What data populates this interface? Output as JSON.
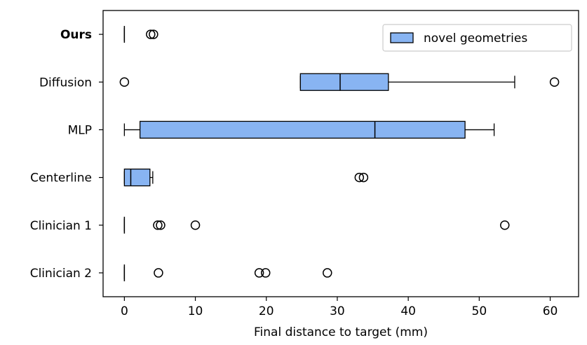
{
  "chart_data": {
    "type": "boxplot",
    "orientation": "horizontal",
    "title": "",
    "xlabel": "Final distance to target (mm)",
    "ylabel": "",
    "xlim": [
      -3,
      64
    ],
    "xticks": [
      0,
      10,
      20,
      30,
      40,
      50,
      60
    ],
    "grid": false,
    "legend": {
      "placement": "top-right",
      "entries": [
        "novel geometries"
      ]
    },
    "colors": {
      "box_fill": "#88b4f2",
      "box_edge": "#000000",
      "median": "#000000"
    },
    "categories": [
      "Ours",
      "Diffusion",
      "MLP",
      "Centerline",
      "Clinician 1",
      "Clinician 2"
    ],
    "bold_categories": [
      "Ours"
    ],
    "series": [
      {
        "name": "novel geometries",
        "boxes": [
          {
            "category": "Ours",
            "whisker_low": 0,
            "q1": 0,
            "median": 0,
            "q3": 0,
            "whisker_high": 0,
            "outliers": [
              3.7,
              4.1
            ]
          },
          {
            "category": "Diffusion",
            "whisker_low": 24.8,
            "q1": 24.8,
            "median": 30.4,
            "q3": 37.2,
            "whisker_high": 55.0,
            "outliers": [
              0,
              60.6
            ]
          },
          {
            "category": "MLP",
            "whisker_low": 0,
            "q1": 2.2,
            "median": 35.3,
            "q3": 48.0,
            "whisker_high": 52.1,
            "outliers": []
          },
          {
            "category": "Centerline",
            "whisker_low": 0,
            "q1": 0,
            "median": 0.9,
            "q3": 3.6,
            "whisker_high": 4.0,
            "outliers": [
              33.1,
              33.7
            ]
          },
          {
            "category": "Clinician 1",
            "whisker_low": 0,
            "q1": 0,
            "median": 0,
            "q3": 0,
            "whisker_high": 0,
            "outliers": [
              4.7,
              5.1,
              10.0,
              53.6
            ]
          },
          {
            "category": "Clinician 2",
            "whisker_low": 0,
            "q1": 0,
            "median": 0,
            "q3": 0,
            "whisker_high": 0,
            "outliers": [
              4.8,
              19.0,
              19.9,
              28.6
            ]
          }
        ]
      }
    ]
  }
}
